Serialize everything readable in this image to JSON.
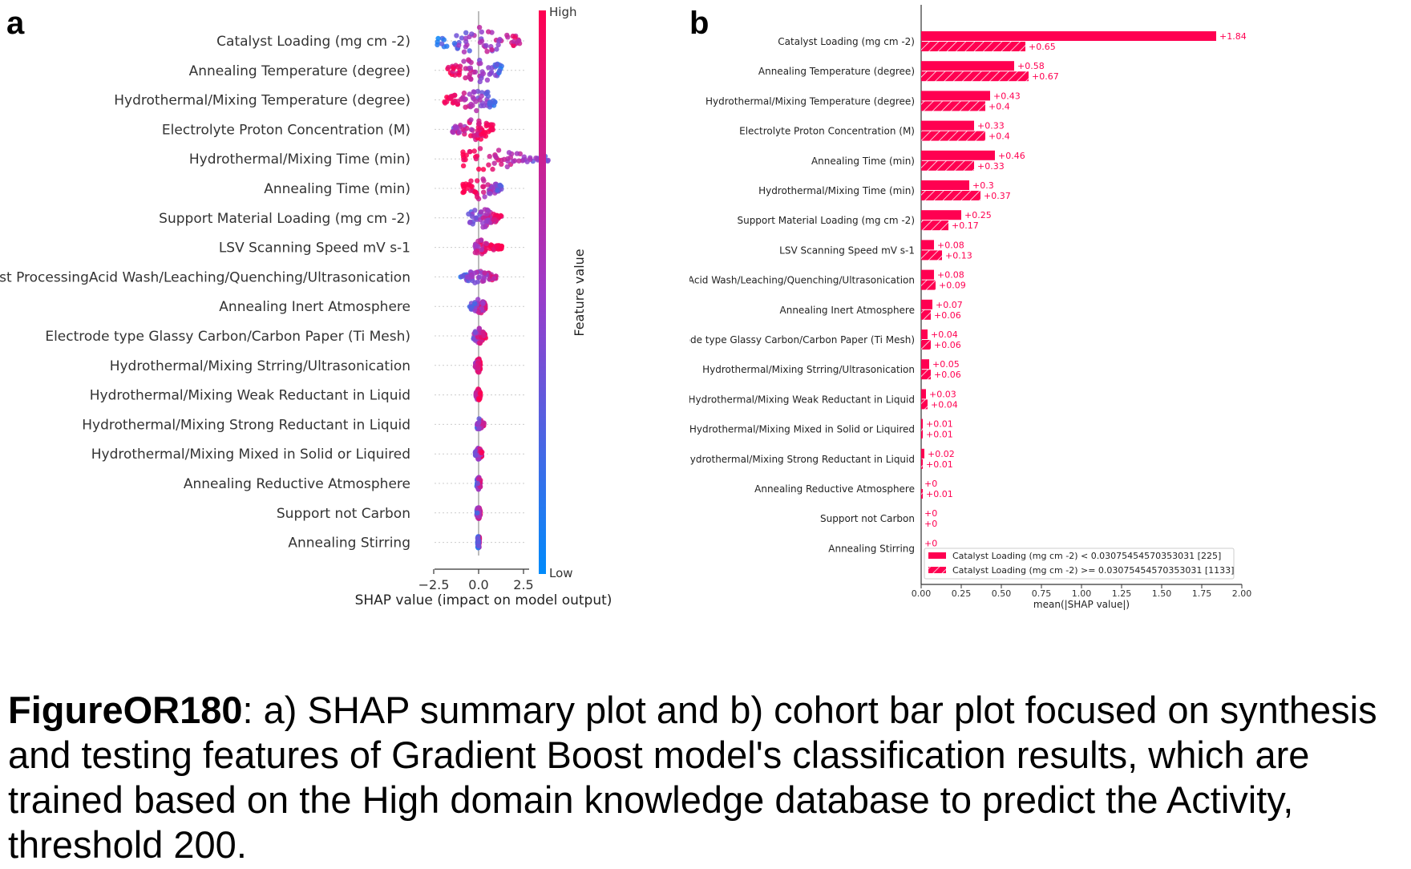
{
  "caption": {
    "label": "FigureOR180",
    "text": ": a) SHAP summary plot and b) cohort bar plot focused on synthesis and testing features of Gradient Boost model's classification results, which are trained based on the High domain knowledge database to predict the Activity, threshold 200."
  },
  "colors": {
    "high": "#ff0051",
    "low": "#008bfb",
    "axis": "#333333",
    "zero_line": "#999999"
  },
  "chart_data": [
    {
      "panel": "a",
      "type": "scatter",
      "subtype": "shap-beeswarm",
      "xlabel": "SHAP value (impact on model output)",
      "xticks": [
        -2.5,
        0.0,
        2.5
      ],
      "xlim": [
        -2.5,
        4.0
      ],
      "colorbar": {
        "label": "Feature value",
        "high": "High",
        "low": "Low"
      },
      "features": [
        {
          "name": "Catalyst Loading (mg cm -2)",
          "min": -2.3,
          "max": 2.5,
          "width": 1.0,
          "bias": 0.0
        },
        {
          "name": "Annealing Temperature (degree)",
          "min": -1.8,
          "max": 1.3,
          "width": 0.95,
          "bias": -0.5
        },
        {
          "name": "Hydrothermal/Mixing Temperature (degree)",
          "min": -1.9,
          "max": 1.0,
          "width": 0.85,
          "bias": -0.4
        },
        {
          "name": "Electrolyte Proton Concentration (M)",
          "min": -1.5,
          "max": 0.8,
          "width": 0.8,
          "bias": 0.3
        },
        {
          "name": "Hydrothermal/Mixing Time (min)",
          "min": -0.9,
          "max": 4.0,
          "width": 0.85,
          "bias": -0.2
        },
        {
          "name": "Annealing Time (min)",
          "min": -0.9,
          "max": 1.3,
          "width": 0.8,
          "bias": -0.1
        },
        {
          "name": "Support Material Loading (mg cm -2)",
          "min": -0.6,
          "max": 1.3,
          "width": 0.75,
          "bias": 0.1
        },
        {
          "name": "LSV Scanning Speed mV s-1",
          "min": -0.2,
          "max": 1.3,
          "width": 0.55,
          "bias": 0.4
        },
        {
          "name": "Post ProcessingAcid Wash/Leaching/Quenching/Ultrasonication",
          "min": -1.0,
          "max": 1.0,
          "width": 0.5,
          "bias": 0.0
        },
        {
          "name": "Annealing Inert Atmosphere",
          "min": -0.5,
          "max": 0.4,
          "width": 0.6,
          "bias": 0.0
        },
        {
          "name": "Electrode type Glassy Carbon/Carbon Paper (Ti Mesh)",
          "min": -0.3,
          "max": 0.4,
          "width": 0.6,
          "bias": 0.2
        },
        {
          "name": "Hydrothermal/Mixing Strring/Ultrasonication",
          "min": -0.2,
          "max": 0.1,
          "width": 0.55,
          "bias": 0.3
        },
        {
          "name": "Hydrothermal/Mixing Weak Reductant in Liquid",
          "min": -0.15,
          "max": 0.1,
          "width": 0.45,
          "bias": 0.3
        },
        {
          "name": "Hydrothermal/Mixing Strong Reductant in Liquid",
          "min": -0.1,
          "max": 0.3,
          "width": 0.45,
          "bias": 0.1
        },
        {
          "name": "Hydrothermal/Mixing Mixed in Solid or Liquired",
          "min": -0.2,
          "max": 0.2,
          "width": 0.45,
          "bias": 0.1
        },
        {
          "name": "Annealing Reductive Atmosphere",
          "min": -0.1,
          "max": 0.1,
          "width": 0.45,
          "bias": 0.0
        },
        {
          "name": "Support not Carbon",
          "min": -0.1,
          "max": 0.1,
          "width": 0.45,
          "bias": 0.1
        },
        {
          "name": "Annealing Stirring",
          "min": -0.05,
          "max": 0.05,
          "width": 0.45,
          "bias": 0.0
        }
      ]
    },
    {
      "panel": "b",
      "type": "bar",
      "subtype": "shap-cohort-bar",
      "xlabel": "mean(|SHAP value|)",
      "xlim": [
        0,
        2.0
      ],
      "xticks": [
        "0.00",
        "0.25",
        "0.50",
        "0.75",
        "1.00",
        "1.25",
        "1.50",
        "1.75",
        "2.00"
      ],
      "legend_position": "bottom-right",
      "series": [
        {
          "name": "Catalyst Loading (mg cm -2) < 0.03075454570353031 [225]",
          "pattern": "solid"
        },
        {
          "name": "Catalyst Loading (mg cm -2) >= 0.03075454570353031 [1133]",
          "pattern": "hatched"
        }
      ],
      "categories": [
        "Catalyst Loading (mg cm -2)",
        "Annealing Temperature (degree)",
        "Hydrothermal/Mixing Temperature (degree)",
        "Electrolyte Proton Concentration (M)",
        "Annealing Time (min)",
        "Hydrothermal/Mixing Time (min)",
        "Support Material Loading (mg cm -2)",
        "LSV Scanning Speed mV s-1",
        "Post ProcessingAcid Wash/Leaching/Quenching/Ultrasonication",
        "Annealing Inert Atmosphere",
        "Electrode type Glassy Carbon/Carbon Paper (Ti Mesh)",
        "Hydrothermal/Mixing Strring/Ultrasonication",
        "Hydrothermal/Mixing Weak Reductant in Liquid",
        "Hydrothermal/Mixing Mixed in Solid or Liquired",
        "Hydrothermal/Mixing Strong Reductant in Liquid",
        "Annealing Reductive Atmosphere",
        "Support not Carbon",
        "Annealing Stirring"
      ],
      "values_cohort1": [
        1.84,
        0.58,
        0.43,
        0.33,
        0.46,
        0.3,
        0.25,
        0.08,
        0.08,
        0.07,
        0.04,
        0.05,
        0.03,
        0.01,
        0.02,
        0,
        0,
        0
      ],
      "values_cohort2": [
        0.65,
        0.67,
        0.4,
        0.4,
        0.33,
        0.37,
        0.17,
        0.13,
        0.09,
        0.06,
        0.06,
        0.06,
        0.04,
        0.01,
        0.01,
        0.01,
        0,
        0
      ],
      "labels_cohort1": [
        "+1.84",
        "+0.58",
        "+0.43",
        "+0.33",
        "+0.46",
        "+0.3",
        "+0.25",
        "+0.08",
        "+0.08",
        "+0.07",
        "+0.04",
        "+0.05",
        "+0.03",
        "+0.01",
        "+0.02",
        "+0",
        "+0",
        "+0"
      ],
      "labels_cohort2": [
        "+0.65",
        "+0.67",
        "+0.4",
        "+0.4",
        "+0.33",
        "+0.37",
        "+0.17",
        "+0.13",
        "+0.09",
        "+0.06",
        "+0.06",
        "+0.06",
        "+0.04",
        "+0.01",
        "+0.01",
        "+0.01",
        "+0",
        ""
      ]
    }
  ]
}
